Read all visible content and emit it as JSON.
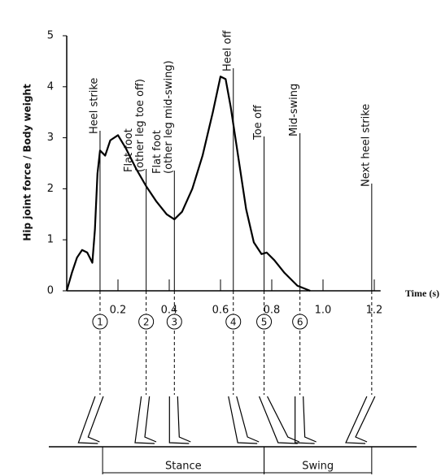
{
  "chart_data": {
    "type": "line",
    "ylabel": "Hip joint force / Body weight",
    "xlabel": "Time (s)",
    "x": [
      0,
      0.02,
      0.04,
      0.06,
      0.08,
      0.1,
      0.11,
      0.12,
      0.13,
      0.14,
      0.15,
      0.17,
      0.2,
      0.23,
      0.27,
      0.31,
      0.35,
      0.39,
      0.42,
      0.45,
      0.49,
      0.53,
      0.57,
      0.6,
      0.62,
      0.64,
      0.67,
      0.7,
      0.73,
      0.76,
      0.78,
      0.81,
      0.85,
      0.9,
      0.95
    ],
    "series": [
      {
        "color": "#000000",
        "values": [
          0,
          0.35,
          0.65,
          0.8,
          0.75,
          0.55,
          1.2,
          2.3,
          2.75,
          2.7,
          2.65,
          2.95,
          3.05,
          2.8,
          2.4,
          2.05,
          1.75,
          1.5,
          1.4,
          1.55,
          2.0,
          2.65,
          3.5,
          4.2,
          4.15,
          3.6,
          2.6,
          1.6,
          0.95,
          0.72,
          0.75,
          0.6,
          0.35,
          0.1,
          0
        ]
      }
    ],
    "xlim": [
      0,
      1.25
    ],
    "ylim": [
      0,
      5
    ],
    "xticks": [
      0.2,
      0.4,
      0.6,
      0.8,
      {
        "value": 1,
        "label": "1.0"
      },
      1.2
    ],
    "yticks": [
      0,
      1,
      2,
      3,
      4,
      5
    ],
    "events": [
      {
        "number": "1",
        "time": 0.13,
        "label": [
          "Heel strike"
        ]
      },
      {
        "number": "2",
        "time": 0.31,
        "label": [
          "Flat foot",
          "(other leg toe off)"
        ]
      },
      {
        "number": "3",
        "time": 0.42,
        "label": [
          "Flat foot",
          "(other leg mid-swing)"
        ]
      },
      {
        "number": "4",
        "time": 0.65,
        "label": [
          "Heel off"
        ]
      },
      {
        "number": "5",
        "time": 0.77,
        "label": [
          "Toe off"
        ]
      },
      {
        "number": "6",
        "time": 0.91,
        "label": [
          "Mid-swing"
        ]
      },
      {
        "time": 1.19,
        "label": [
          "Next heel strike"
        ]
      }
    ],
    "phases": [
      {
        "name": "Stance",
        "start": 0.14,
        "end": 0.77
      },
      {
        "name": "Swing",
        "start": 0.77,
        "end": 1.19
      }
    ]
  }
}
